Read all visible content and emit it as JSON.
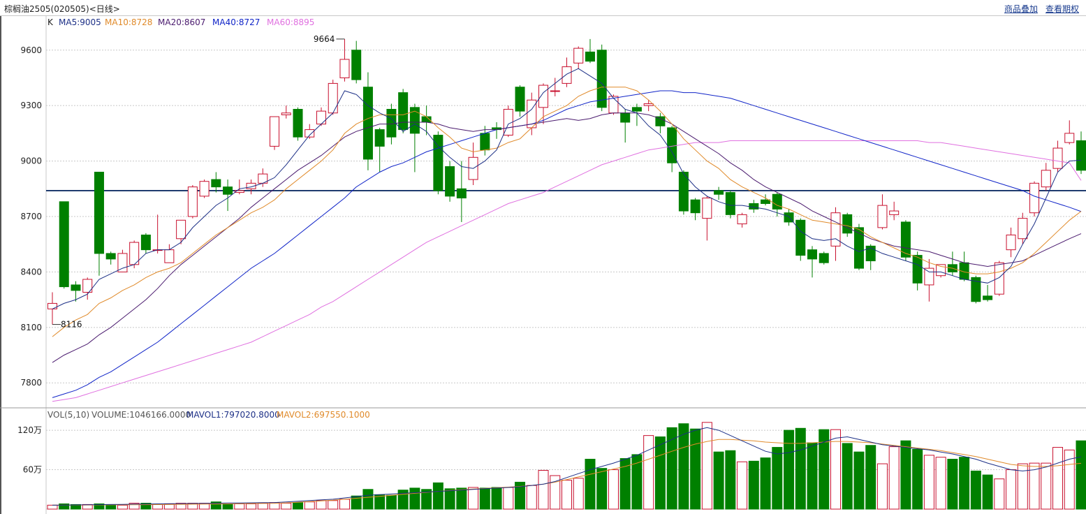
{
  "header": {
    "title": "棕榈油2505(020505)<日线>",
    "link_overlay": "商品叠加",
    "link_rights": "查看期权"
  },
  "legend": {
    "k_label": "K",
    "ma": [
      {
        "text": "MA5:9005",
        "color": "#1c2f86"
      },
      {
        "text": "MA10:8728",
        "color": "#e08a2a"
      },
      {
        "text": "MA20:8607",
        "color": "#4a1a6e"
      },
      {
        "text": "MA40:8727",
        "color": "#1024c8"
      },
      {
        "text": "MA60:8895",
        "color": "#e070e0"
      }
    ],
    "vol_label": "VOL(5,10)",
    "volume": "VOLUME:1046166.0000",
    "mavol1": "MAVOL1:797020.8000",
    "mavol2": "MAVOL2:697550.1000"
  },
  "colors": {
    "up": "#c8102e",
    "down": "#008000",
    "grid": "#c8c8c8",
    "hline": "#1f3b6e"
  },
  "chart_data": {
    "type": "candlestick",
    "price_axis": {
      "min": 7680,
      "max": 9720,
      "ticks": [
        7800,
        8100,
        8400,
        8700,
        9000,
        9300,
        9600
      ]
    },
    "volume_axis": {
      "min": 0,
      "max": 1350000,
      "ticks": [
        {
          "value": 600000,
          "label": "60万"
        },
        {
          "value": 1200000,
          "label": "120万"
        }
      ]
    },
    "annotations": {
      "high": 9664,
      "low": 8116
    },
    "reference_line": 8840,
    "candles": [
      [
        8200,
        8230,
        8290,
        8116,
        60000
      ],
      [
        8780,
        8320,
        8780,
        8310,
        80000
      ],
      [
        8330,
        8300,
        8350,
        8240,
        70000
      ],
      [
        8290,
        8360,
        8370,
        8250,
        70000
      ],
      [
        8940,
        8500,
        8940,
        8380,
        80000
      ],
      [
        8500,
        8470,
        8510,
        8440,
        70000
      ],
      [
        8400,
        8500,
        8520,
        8400,
        60000
      ],
      [
        8440,
        8560,
        8570,
        8420,
        90000
      ],
      [
        8600,
        8520,
        8610,
        8500,
        90000
      ],
      [
        8520,
        8520,
        8710,
        8500,
        70000
      ],
      [
        8450,
        8520,
        8550,
        8450,
        80000
      ],
      [
        8580,
        8680,
        8680,
        8550,
        90000
      ],
      [
        8700,
        8860,
        8870,
        8690,
        90000
      ],
      [
        8810,
        8890,
        8900,
        8800,
        90000
      ],
      [
        8900,
        8860,
        8940,
        8830,
        110000
      ],
      [
        8860,
        8820,
        8900,
        8730,
        80000
      ],
      [
        8830,
        8840,
        8900,
        8820,
        80000
      ],
      [
        8850,
        8880,
        8900,
        8820,
        80000
      ],
      [
        8880,
        8930,
        8960,
        8860,
        90000
      ],
      [
        9080,
        9240,
        9240,
        9060,
        100000
      ],
      [
        9250,
        9260,
        9300,
        9230,
        90000
      ],
      [
        9280,
        9130,
        9290,
        9110,
        100000
      ],
      [
        9130,
        9170,
        9200,
        9120,
        110000
      ],
      [
        9200,
        9270,
        9290,
        9190,
        130000
      ],
      [
        9260,
        9420,
        9440,
        9250,
        130000
      ],
      [
        9450,
        9550,
        9660,
        9430,
        150000
      ],
      [
        9600,
        9440,
        9650,
        9420,
        200000
      ],
      [
        9400,
        9010,
        9480,
        8950,
        300000
      ],
      [
        9170,
        9080,
        9180,
        8940,
        220000
      ],
      [
        9280,
        9130,
        9310,
        9090,
        210000
      ],
      [
        9370,
        9170,
        9390,
        9150,
        290000
      ],
      [
        9290,
        9150,
        9310,
        8940,
        320000
      ],
      [
        9240,
        9210,
        9300,
        9140,
        300000
      ],
      [
        9140,
        8840,
        9160,
        8820,
        400000
      ],
      [
        8970,
        8810,
        9000,
        8780,
        310000
      ],
      [
        8850,
        8800,
        9000,
        8670,
        320000
      ],
      [
        8900,
        9020,
        9100,
        8870,
        330000
      ],
      [
        9150,
        9060,
        9190,
        9030,
        320000
      ],
      [
        9180,
        9170,
        9210,
        9120,
        330000
      ],
      [
        9140,
        9280,
        9300,
        9130,
        330000
      ],
      [
        9400,
        9270,
        9410,
        9240,
        410000
      ],
      [
        9180,
        9330,
        9370,
        9140,
        360000
      ],
      [
        9290,
        9410,
        9420,
        9200,
        590000
      ],
      [
        9380,
        9380,
        9450,
        9350,
        510000
      ],
      [
        9420,
        9510,
        9560,
        9400,
        440000
      ],
      [
        9530,
        9610,
        9620,
        9500,
        470000
      ],
      [
        9590,
        9540,
        9660,
        9530,
        760000
      ],
      [
        9600,
        9290,
        9630,
        9270,
        620000
      ],
      [
        9260,
        9350,
        9360,
        9250,
        600000
      ],
      [
        9260,
        9210,
        9280,
        9100,
        770000
      ],
      [
        9290,
        9270,
        9310,
        9190,
        830000
      ],
      [
        9300,
        9310,
        9330,
        9270,
        1120000
      ],
      [
        9240,
        9190,
        9260,
        9150,
        1100000
      ],
      [
        9180,
        8990,
        9190,
        8940,
        1240000
      ],
      [
        8940,
        8730,
        8950,
        8710,
        1300000
      ],
      [
        8790,
        8720,
        8800,
        8680,
        1220000
      ],
      [
        8690,
        8800,
        8810,
        8570,
        1320000
      ],
      [
        8840,
        8820,
        8860,
        8790,
        870000
      ],
      [
        8830,
        8710,
        8840,
        8690,
        890000
      ],
      [
        8660,
        8710,
        8720,
        8640,
        720000
      ],
      [
        8770,
        8740,
        8790,
        8720,
        730000
      ],
      [
        8790,
        8770,
        8820,
        8760,
        780000
      ],
      [
        8820,
        8740,
        8830,
        8700,
        940000
      ],
      [
        8720,
        8670,
        8740,
        8650,
        1200000
      ],
      [
        8680,
        8490,
        8690,
        8460,
        1230000
      ],
      [
        8520,
        8470,
        8540,
        8370,
        1010000
      ],
      [
        8500,
        8450,
        8510,
        8440,
        1210000
      ],
      [
        8540,
        8720,
        8750,
        8460,
        1210000
      ],
      [
        8710,
        8610,
        8720,
        8590,
        1000000
      ],
      [
        8640,
        8420,
        8660,
        8410,
        870000
      ],
      [
        8540,
        8460,
        8550,
        8410,
        970000
      ],
      [
        8640,
        8760,
        8820,
        8630,
        690000
      ],
      [
        8710,
        8730,
        8780,
        8680,
        950000
      ],
      [
        8670,
        8480,
        8680,
        8460,
        1040000
      ],
      [
        8490,
        8340,
        8510,
        8300,
        910000
      ],
      [
        8330,
        8420,
        8470,
        8240,
        820000
      ],
      [
        8380,
        8440,
        8440,
        8370,
        790000
      ],
      [
        8440,
        8400,
        8510,
        8380,
        760000
      ],
      [
        8450,
        8360,
        8510,
        8350,
        790000
      ],
      [
        8370,
        8240,
        8380,
        8230,
        580000
      ],
      [
        8270,
        8250,
        8330,
        8240,
        520000
      ],
      [
        8280,
        8450,
        8460,
        8270,
        460000
      ],
      [
        8520,
        8600,
        8640,
        8480,
        600000
      ],
      [
        8580,
        8690,
        8720,
        8550,
        690000
      ],
      [
        8720,
        8880,
        8890,
        8700,
        700000
      ],
      [
        8860,
        8950,
        8990,
        8840,
        700000
      ],
      [
        8960,
        9070,
        9110,
        8940,
        940000
      ],
      [
        9100,
        9150,
        9220,
        9090,
        900000
      ],
      [
        9110,
        8950,
        9160,
        8930,
        1040000
      ]
    ],
    "ma5": [
      8200,
      8230,
      8250,
      8280,
      8360,
      8390,
      8420,
      8440,
      8500,
      8520,
      8520,
      8560,
      8640,
      8700,
      8760,
      8800,
      8850,
      8860,
      8880,
      8910,
      8980,
      9060,
      9140,
      9200,
      9260,
      9380,
      9360,
      9300,
      9260,
      9230,
      9160,
      9200,
      9160,
      9080,
      9020,
      8970,
      8960,
      9000,
      9060,
      9200,
      9230,
      9280,
      9370,
      9420,
      9470,
      9500,
      9460,
      9420,
      9340,
      9280,
      9260,
      9190,
      9140,
      9050,
      8930,
      8860,
      8810,
      8780,
      8760,
      8760,
      8750,
      8740,
      8720,
      8700,
      8620,
      8580,
      8570,
      8580,
      8540,
      8510,
      8530,
      8500,
      8480,
      8460,
      8440,
      8400,
      8400,
      8380,
      8360,
      8350,
      8340,
      8370,
      8430,
      8550,
      8660,
      8800,
      8940,
      9000,
      9005
    ],
    "ma10": [
      8050,
      8100,
      8140,
      8170,
      8230,
      8260,
      8300,
      8330,
      8370,
      8400,
      8420,
      8450,
      8500,
      8550,
      8600,
      8640,
      8680,
      8720,
      8750,
      8790,
      8850,
      8900,
      8950,
      9000,
      9060,
      9150,
      9200,
      9230,
      9250,
      9250,
      9250,
      9270,
      9240,
      9180,
      9130,
      9070,
      9050,
      9060,
      9070,
      9100,
      9120,
      9180,
      9240,
      9270,
      9300,
      9350,
      9380,
      9400,
      9400,
      9400,
      9380,
      9330,
      9270,
      9200,
      9120,
      9060,
      9000,
      8960,
      8900,
      8860,
      8830,
      8800,
      8760,
      8740,
      8710,
      8680,
      8670,
      8660,
      8650,
      8630,
      8590,
      8560,
      8530,
      8500,
      8480,
      8450,
      8430,
      8420,
      8400,
      8390,
      8390,
      8400,
      8420,
      8450,
      8500,
      8560,
      8620,
      8680,
      8728
    ],
    "ma20": [
      7910,
      7950,
      7980,
      8010,
      8060,
      8100,
      8150,
      8200,
      8250,
      8310,
      8380,
      8440,
      8490,
      8540,
      8590,
      8640,
      8690,
      8750,
      8800,
      8850,
      8900,
      8950,
      8990,
      9030,
      9080,
      9130,
      9160,
      9180,
      9200,
      9200,
      9210,
      9210,
      9210,
      9200,
      9180,
      9170,
      9160,
      9170,
      9170,
      9180,
      9190,
      9200,
      9210,
      9220,
      9230,
      9220,
      9230,
      9250,
      9260,
      9260,
      9260,
      9250,
      9230,
      9200,
      9160,
      9120,
      9080,
      9040,
      8990,
      8950,
      8900,
      8860,
      8830,
      8800,
      8770,
      8730,
      8700,
      8670,
      8640,
      8610,
      8580,
      8560,
      8540,
      8530,
      8520,
      8510,
      8490,
      8470,
      8450,
      8440,
      8430,
      8440,
      8450,
      8460,
      8490,
      8520,
      8550,
      8580,
      8607
    ],
    "ma40": [
      7720,
      7740,
      7760,
      7790,
      7830,
      7860,
      7900,
      7940,
      7980,
      8020,
      8070,
      8120,
      8170,
      8220,
      8270,
      8320,
      8370,
      8420,
      8460,
      8500,
      8550,
      8600,
      8650,
      8700,
      8750,
      8800,
      8860,
      8900,
      8940,
      8970,
      8990,
      9020,
      9050,
      9070,
      9090,
      9110,
      9130,
      9150,
      9170,
      9180,
      9190,
      9200,
      9220,
      9250,
      9280,
      9300,
      9320,
      9330,
      9340,
      9350,
      9360,
      9370,
      9380,
      9380,
      9370,
      9370,
      9360,
      9350,
      9340,
      9320,
      9300,
      9280,
      9260,
      9240,
      9220,
      9200,
      9180,
      9160,
      9140,
      9120,
      9100,
      9080,
      9060,
      9040,
      9020,
      9000,
      8980,
      8960,
      8940,
      8920,
      8900,
      8880,
      8860,
      8840,
      8810,
      8790,
      8770,
      8750,
      8727
    ],
    "ma60": [
      7700,
      7710,
      7720,
      7740,
      7760,
      7780,
      7800,
      7820,
      7840,
      7860,
      7880,
      7900,
      7920,
      7940,
      7960,
      7980,
      8000,
      8020,
      8050,
      8080,
      8110,
      8140,
      8170,
      8210,
      8240,
      8280,
      8320,
      8360,
      8400,
      8440,
      8480,
      8520,
      8560,
      8590,
      8620,
      8650,
      8680,
      8710,
      8740,
      8770,
      8790,
      8810,
      8830,
      8860,
      8890,
      8920,
      8950,
      8980,
      9000,
      9020,
      9040,
      9060,
      9070,
      9080,
      9090,
      9100,
      9100,
      9100,
      9110,
      9110,
      9110,
      9110,
      9110,
      9110,
      9110,
      9110,
      9110,
      9110,
      9110,
      9110,
      9110,
      9110,
      9110,
      9110,
      9110,
      9100,
      9100,
      9090,
      9080,
      9070,
      9060,
      9050,
      9040,
      9030,
      9020,
      9010,
      9000,
      8990,
      8895
    ],
    "mavol1": [
      60000,
      62000,
      64000,
      66000,
      68000,
      70000,
      72000,
      75000,
      78000,
      80000,
      82000,
      84000,
      86000,
      88000,
      90000,
      92000,
      94000,
      96000,
      98000,
      100000,
      110000,
      120000,
      130000,
      140000,
      150000,
      170000,
      190000,
      210000,
      220000,
      230000,
      240000,
      250000,
      260000,
      270000,
      280000,
      290000,
      300000,
      310000,
      320000,
      330000,
      340000,
      360000,
      380000,
      420000,
      480000,
      540000,
      600000,
      650000,
      700000,
      760000,
      820000,
      900000,
      980000,
      1060000,
      1140000,
      1200000,
      1240000,
      1200000,
      1120000,
      1040000,
      960000,
      880000,
      840000,
      860000,
      900000,
      960000,
      1020000,
      1080000,
      1100000,
      1060000,
      1020000,
      980000,
      960000,
      940000,
      920000,
      900000,
      870000,
      840000,
      800000,
      760000,
      700000,
      650000,
      600000,
      580000,
      600000,
      640000,
      700000,
      760000,
      797020
    ],
    "mavol2": [
      60000,
      61000,
      62000,
      63000,
      64000,
      65000,
      66000,
      67000,
      68000,
      69000,
      70000,
      72000,
      74000,
      76000,
      78000,
      80000,
      82000,
      84000,
      86000,
      88000,
      95000,
      105000,
      115000,
      125000,
      135000,
      150000,
      165000,
      180000,
      195000,
      210000,
      225000,
      240000,
      255000,
      270000,
      285000,
      295000,
      305000,
      315000,
      325000,
      335000,
      345000,
      360000,
      380000,
      410000,
      450000,
      490000,
      530000,
      570000,
      610000,
      650000,
      700000,
      760000,
      820000,
      880000,
      940000,
      990000,
      1030000,
      1060000,
      1060000,
      1050000,
      1040000,
      1020000,
      1010000,
      1000000,
      1000000,
      1010000,
      1020000,
      1030000,
      1030000,
      1020000,
      1010000,
      990000,
      970000,
      950000,
      930000,
      910000,
      890000,
      860000,
      830000,
      800000,
      760000,
      720000,
      680000,
      660000,
      650000,
      650000,
      660000,
      680000,
      697550
    ]
  }
}
